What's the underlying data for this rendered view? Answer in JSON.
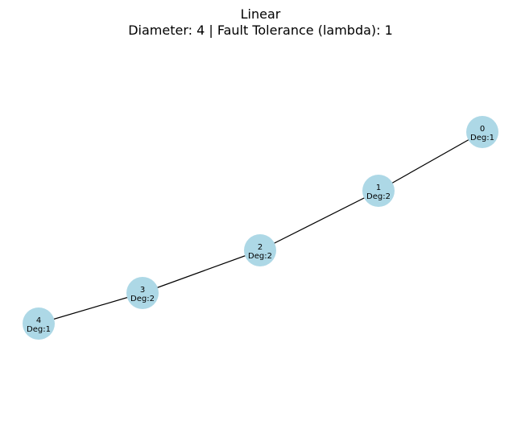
{
  "figure": {
    "title": "Linear",
    "subtitle": "Diameter: 4 | Fault Tolerance (lambda): 1"
  },
  "graph": {
    "node_color": "#add8e6",
    "edge_color": "#000000",
    "nodes": [
      {
        "id": "0",
        "label_id": "0",
        "label_deg": "Deg:1"
      },
      {
        "id": "1",
        "label_id": "1",
        "label_deg": "Deg:2"
      },
      {
        "id": "2",
        "label_id": "2",
        "label_deg": "Deg:2"
      },
      {
        "id": "3",
        "label_id": "3",
        "label_deg": "Deg:2"
      },
      {
        "id": "4",
        "label_id": "4",
        "label_deg": "Deg:1"
      }
    ],
    "edges": [
      {
        "source": "0",
        "target": "1"
      },
      {
        "source": "1",
        "target": "2"
      },
      {
        "source": "2",
        "target": "3"
      },
      {
        "source": "3",
        "target": "4"
      }
    ]
  }
}
